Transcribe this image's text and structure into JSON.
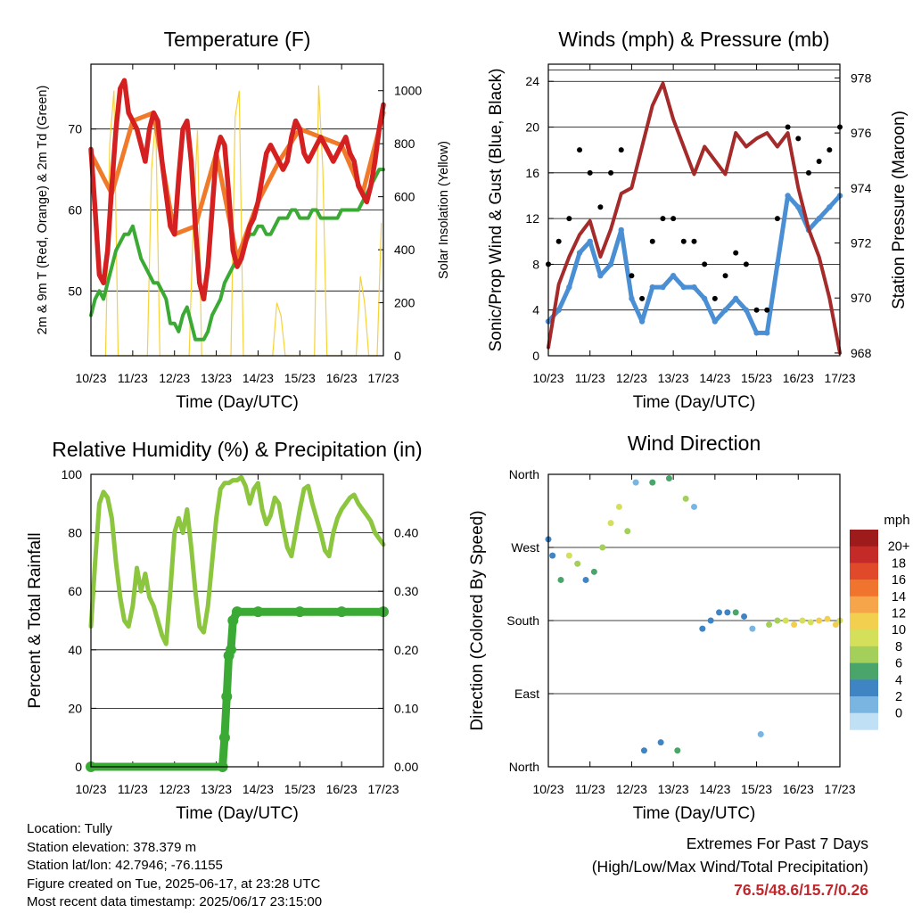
{
  "chart_data": [
    {
      "type": "line",
      "title": "Temperature (F)",
      "xlabel": "Time (Day/UTC)",
      "ylabel": "2m & 9m T (Red, Orange) & 2m Td (Green)",
      "ylabel_right": "Solar Insolation (Yellow)",
      "x_ticks": [
        "10/23",
        "11/23",
        "12/23",
        "13/23",
        "14/23",
        "15/23",
        "16/23",
        "17/23"
      ],
      "y_ticks": [
        50,
        60,
        70
      ],
      "y2_ticks": [
        0,
        200,
        400,
        600,
        800,
        1000
      ],
      "ylim": [
        42,
        78
      ],
      "y2lim": [
        0,
        1100
      ],
      "grid": true,
      "series": [
        {
          "role": "2m T",
          "color": "#d42020",
          "x": [
            0,
            0.1,
            0.2,
            0.3,
            0.4,
            0.5,
            0.6,
            0.7,
            0.8,
            0.9,
            1.0,
            1.1,
            1.2,
            1.3,
            1.4,
            1.5,
            1.6,
            1.7,
            1.8,
            1.9,
            2.0,
            2.1,
            2.2,
            2.3,
            2.4,
            2.5,
            2.6,
            2.7,
            2.8,
            2.9,
            3.0,
            3.1,
            3.2,
            3.3,
            3.4,
            3.5,
            3.6,
            3.7,
            3.8,
            3.9,
            4.0,
            4.1,
            4.2,
            4.3,
            4.4,
            4.5,
            4.6,
            4.7,
            4.8,
            4.9,
            5.0,
            5.1,
            5.2,
            5.3,
            5.4,
            5.5,
            5.6,
            5.7,
            5.8,
            5.9,
            6.0,
            6.1,
            6.2,
            6.3,
            6.4,
            6.5,
            6.6,
            6.7,
            6.8,
            6.9,
            7.0
          ],
          "y": [
            67.5,
            60,
            52,
            51,
            55,
            63,
            70,
            75,
            76,
            72,
            71,
            70,
            68,
            66,
            70,
            72,
            71,
            66,
            62,
            58,
            57,
            64,
            70,
            71,
            66,
            58,
            51,
            49,
            53,
            60,
            67,
            69,
            68,
            62,
            55,
            53,
            54,
            56,
            58,
            59,
            61,
            64,
            67,
            68,
            67,
            66,
            65,
            66,
            69,
            71,
            70,
            67,
            66,
            67,
            68,
            69,
            68,
            67,
            66,
            67,
            68,
            69,
            67,
            66,
            63,
            62,
            61,
            63,
            66,
            70,
            73
          ]
        },
        {
          "role": "9m T",
          "color": "#f07a2a",
          "x": [
            0,
            0.5,
            1.0,
            1.5,
            2.0,
            2.5,
            3.0,
            3.5,
            4.0,
            4.5,
            5.0,
            5.5,
            6.0,
            6.5,
            7.0
          ],
          "y": [
            67,
            62,
            71,
            72,
            57,
            58,
            67,
            54,
            61,
            66,
            70,
            69,
            68,
            62,
            72
          ]
        },
        {
          "role": "2m Td",
          "color": "#3aaa35",
          "x": [
            0,
            0.1,
            0.2,
            0.3,
            0.4,
            0.5,
            0.6,
            0.7,
            0.8,
            0.9,
            1.0,
            1.1,
            1.2,
            1.3,
            1.4,
            1.5,
            1.6,
            1.7,
            1.8,
            1.9,
            2.0,
            2.1,
            2.2,
            2.3,
            2.4,
            2.5,
            2.6,
            2.7,
            2.8,
            2.9,
            3.0,
            3.1,
            3.2,
            3.3,
            3.4,
            3.5,
            3.6,
            3.7,
            3.8,
            3.9,
            4.0,
            4.1,
            4.2,
            4.3,
            4.4,
            4.5,
            4.6,
            4.7,
            4.8,
            4.9,
            5.0,
            5.1,
            5.2,
            5.3,
            5.4,
            5.5,
            5.6,
            5.7,
            5.8,
            5.9,
            6.0,
            6.1,
            6.2,
            6.3,
            6.4,
            6.5,
            6.6,
            6.7,
            6.8,
            6.9,
            7.0
          ],
          "y": [
            47,
            49,
            50,
            49,
            51,
            53,
            55,
            56,
            57,
            57,
            58,
            56,
            54,
            53,
            52,
            51,
            51,
            50,
            49,
            46,
            46,
            45,
            47,
            48,
            46,
            44,
            44,
            44,
            45,
            47,
            48,
            49,
            51,
            52,
            53,
            54,
            55,
            56,
            57,
            57,
            58,
            58,
            57,
            57,
            58,
            59,
            59,
            59,
            60,
            60,
            59,
            59,
            59,
            60,
            60,
            59,
            59,
            59,
            59,
            59,
            60,
            60,
            60,
            60,
            60,
            61,
            62,
            63,
            64,
            65,
            65
          ]
        },
        {
          "role": "Solar Insolation",
          "color": "#f6d23a",
          "axis": "right",
          "x": [
            0.35,
            0.45,
            0.55,
            0.65,
            1.35,
            1.45,
            1.55,
            1.65,
            2.35,
            2.45,
            2.55,
            2.65,
            3.35,
            3.45,
            3.55,
            3.65,
            4.35,
            4.45,
            4.55,
            4.65,
            5.35,
            5.45,
            5.55,
            5.65,
            6.35,
            6.45,
            6.55,
            6.65,
            6.85,
            6.95
          ],
          "y": [
            0,
            800,
            1000,
            0,
            0,
            700,
            900,
            0,
            0,
            500,
            850,
            0,
            0,
            900,
            1000,
            0,
            0,
            200,
            150,
            0,
            0,
            1020,
            700,
            0,
            0,
            300,
            200,
            0,
            0,
            500
          ]
        }
      ]
    },
    {
      "type": "scatter",
      "title": "Winds (mph) & Pressure (mb)",
      "xlabel": "Time (Day/UTC)",
      "ylabel": "Sonic/Prop Wind & Gust (Blue, Black)",
      "ylabel_right": "Station Pressure (Maroon)",
      "x_ticks": [
        "10/23",
        "11/23",
        "12/23",
        "13/23",
        "14/23",
        "15/23",
        "16/23",
        "17/23"
      ],
      "y_ticks": [
        0,
        4,
        8,
        12,
        16,
        20,
        24
      ],
      "y2_ticks": [
        968,
        970,
        972,
        974,
        976,
        978
      ],
      "ylim": [
        0,
        25.5
      ],
      "y2lim": [
        967.9,
        978.5
      ],
      "grid": true,
      "series": [
        {
          "role": "Wind",
          "color": "#4a8fd4",
          "x": [
            0,
            0.25,
            0.5,
            0.75,
            1,
            1.25,
            1.5,
            1.75,
            2,
            2.25,
            2.5,
            2.75,
            3,
            3.25,
            3.5,
            3.75,
            4,
            4.25,
            4.5,
            4.75,
            5,
            5.25,
            5.5,
            5.75,
            6,
            6.25,
            6.5,
            6.75,
            7
          ],
          "y": [
            3,
            4,
            6,
            9,
            10,
            7,
            8,
            11,
            5,
            3,
            6,
            6,
            7,
            6,
            6,
            5,
            3,
            4,
            5,
            4,
            2,
            2,
            8,
            14,
            13,
            11,
            12,
            13,
            14
          ]
        },
        {
          "role": "Gust",
          "color": "#000000",
          "x": [
            0,
            0.25,
            0.5,
            0.75,
            1,
            1.25,
            1.5,
            1.75,
            2,
            2.25,
            2.5,
            2.75,
            3,
            3.25,
            3.5,
            3.75,
            4,
            4.25,
            4.5,
            4.75,
            5,
            5.25,
            5.5,
            5.75,
            6,
            6.25,
            6.5,
            6.75,
            7
          ],
          "y": [
            8,
            10,
            12,
            18,
            16,
            13,
            16,
            18,
            7,
            5,
            10,
            12,
            12,
            10,
            10,
            8,
            5,
            7,
            9,
            8,
            4,
            4,
            12,
            20,
            19,
            16,
            17,
            18,
            20
          ]
        },
        {
          "role": "Station Pressure",
          "color": "#a52a2a",
          "axis": "right",
          "x": [
            0,
            0.25,
            0.5,
            0.75,
            1,
            1.25,
            1.5,
            1.75,
            2,
            2.25,
            2.5,
            2.75,
            3,
            3.25,
            3.5,
            3.75,
            4,
            4.25,
            4.5,
            4.75,
            5,
            5.25,
            5.5,
            5.75,
            6,
            6.25,
            6.5,
            6.75,
            7
          ],
          "y": [
            968.2,
            970.5,
            971.5,
            972.3,
            972.8,
            971.5,
            972.5,
            973.8,
            974,
            975.5,
            977,
            977.8,
            976.5,
            975.5,
            974.5,
            975.5,
            975,
            974.5,
            976,
            975.5,
            975.8,
            976,
            975.5,
            976,
            974,
            972.5,
            971.5,
            970,
            968
          ]
        }
      ]
    },
    {
      "type": "line",
      "title": "Relative Humidity (%) & Precipitation (in)",
      "xlabel": "Time (Day/UTC)",
      "ylabel": "Percent & Total Rainfall",
      "x_ticks": [
        "10/23",
        "11/23",
        "12/23",
        "13/23",
        "14/23",
        "15/23",
        "16/23",
        "17/23"
      ],
      "y_ticks": [
        0,
        20,
        40,
        60,
        80,
        100
      ],
      "y2_ticks": [
        "0.00",
        "0.10",
        "0.20",
        "0.30",
        "0.40"
      ],
      "ylim": [
        0,
        100
      ],
      "y2lim": [
        0,
        0.5
      ],
      "grid": true,
      "series": [
        {
          "role": "Relative Humidity",
          "color": "#8cc63f",
          "x": [
            0,
            0.1,
            0.2,
            0.3,
            0.4,
            0.5,
            0.6,
            0.7,
            0.8,
            0.9,
            1.0,
            1.1,
            1.2,
            1.3,
            1.4,
            1.5,
            1.6,
            1.7,
            1.8,
            1.9,
            2.0,
            2.1,
            2.2,
            2.3,
            2.4,
            2.5,
            2.6,
            2.7,
            2.8,
            2.9,
            3.0,
            3.1,
            3.2,
            3.3,
            3.4,
            3.5,
            3.6,
            3.7,
            3.8,
            3.9,
            4.0,
            4.1,
            4.2,
            4.3,
            4.4,
            4.5,
            4.6,
            4.7,
            4.8,
            4.9,
            5.0,
            5.1,
            5.2,
            5.3,
            5.4,
            5.5,
            5.6,
            5.7,
            5.8,
            5.9,
            6.0,
            6.1,
            6.2,
            6.3,
            6.4,
            6.5,
            6.6,
            6.7,
            6.8,
            6.9,
            7.0
          ],
          "y": [
            48,
            70,
            90,
            94,
            92,
            85,
            70,
            58,
            50,
            48,
            55,
            68,
            60,
            66,
            58,
            55,
            50,
            45,
            42,
            60,
            80,
            85,
            80,
            88,
            75,
            60,
            48,
            46,
            55,
            70,
            85,
            95,
            97,
            97,
            98,
            98,
            99,
            96,
            90,
            95,
            97,
            88,
            83,
            86,
            92,
            90,
            82,
            75,
            72,
            80,
            88,
            95,
            96,
            90,
            85,
            80,
            74,
            72,
            80,
            85,
            88,
            90,
            92,
            93,
            90,
            88,
            86,
            84,
            80,
            78,
            76
          ]
        },
        {
          "role": "Total Rainfall",
          "color": "#3aaa35",
          "axis": "right",
          "x": [
            0,
            3.15,
            3.2,
            3.25,
            3.3,
            3.35,
            3.4,
            3.5,
            4,
            5,
            6,
            7
          ],
          "y": [
            0,
            0,
            0.05,
            0.12,
            0.19,
            0.2,
            0.25,
            0.265,
            0.265,
            0.265,
            0.265,
            0.265
          ]
        }
      ]
    },
    {
      "type": "scatter",
      "title": "Wind Direction",
      "xlabel": "Time (Day/UTC)",
      "ylabel": "Direction (Colored By Speed)",
      "x_ticks": [
        "10/23",
        "11/23",
        "12/23",
        "13/23",
        "14/23",
        "15/23",
        "16/23",
        "17/23"
      ],
      "y_tick_labels": [
        "North",
        "East",
        "South",
        "West",
        "North"
      ],
      "y_ticks_deg": [
        0,
        90,
        180,
        270,
        360
      ],
      "ylim": [
        0,
        360
      ],
      "grid": true,
      "colorbar": {
        "title": "mph",
        "labels": [
          "20+",
          "18",
          "16",
          "14",
          "12",
          "10",
          "8",
          "6",
          "4",
          "2",
          "0"
        ],
        "colors": [
          "#9e1b1b",
          "#c42a28",
          "#e04a2a",
          "#f0742e",
          "#f7a54a",
          "#f2cf4f",
          "#d4e05a",
          "#a3cf5a",
          "#4aa56a",
          "#3f85c4",
          "#7ab5e2",
          "#bfe0f5"
        ]
      },
      "series": [
        {
          "role": "direction samples",
          "x": [
            0,
            0.1,
            0.3,
            0.5,
            0.7,
            0.9,
            1.1,
            1.3,
            1.5,
            1.7,
            1.9,
            2.1,
            2.3,
            2.5,
            2.7,
            2.9,
            3.1,
            3.3,
            3.5,
            3.7,
            3.9,
            4.1,
            4.3,
            4.5,
            4.7,
            4.9,
            5.1,
            5.3,
            5.5,
            5.7,
            5.9,
            6.1,
            6.3,
            6.5,
            6.7,
            6.9,
            7.0
          ],
          "y_deg": [
            280,
            260,
            230,
            260,
            250,
            230,
            240,
            270,
            300,
            320,
            290,
            350,
            20,
            350,
            30,
            355,
            20,
            330,
            320,
            170,
            180,
            190,
            190,
            190,
            185,
            170,
            40,
            175,
            180,
            180,
            175,
            180,
            178,
            180,
            182,
            175,
            180
          ],
          "speed": [
            5,
            4,
            6,
            10,
            8,
            5,
            7,
            9,
            10,
            11,
            9,
            3,
            4,
            6,
            5,
            7,
            6,
            8,
            3,
            4,
            5,
            4,
            5,
            6,
            5,
            3,
            2,
            8,
            9,
            11,
            12,
            10,
            11,
            12,
            13,
            12,
            11
          ]
        }
      ]
    }
  ],
  "footer": {
    "location": "Location: Tully",
    "elevation": "Station elevation: 378.379 m",
    "latlon": "Station lat/lon: 42.7946; -76.1155",
    "created": "Figure created on Tue, 2025-06-17, at 23:28 UTC",
    "recent": "Most recent data timestamp: 2025/06/17 23:15:00"
  },
  "extremes": {
    "title": "Extremes For Past 7 Days",
    "subtitle": "(High/Low/Max Wind/Total Precipitation)",
    "values": "76.5/48.6/15.7/0.26"
  }
}
